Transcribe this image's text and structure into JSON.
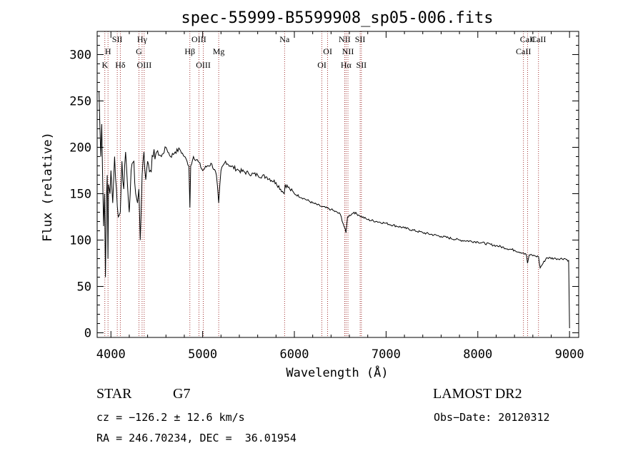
{
  "chart_data": {
    "type": "line",
    "title": "spec-55999-B5599908_sp05-006.fits",
    "xlabel": "Wavelength (Å)",
    "ylabel": "Flux (relative)",
    "xlim": [
      3850,
      9100
    ],
    "ylim": [
      -5,
      325
    ],
    "x_ticks": [
      4000,
      5000,
      6000,
      7000,
      8000,
      9000
    ],
    "y_ticks": [
      0,
      50,
      100,
      150,
      200,
      250,
      300
    ],
    "grid": false,
    "series": [
      {
        "x": [
          3870,
          3880,
          3890,
          3900,
          3910,
          3920,
          3930,
          3940,
          3950,
          3960,
          3968,
          3975,
          3990,
          4000,
          4020,
          4040,
          4060,
          4080,
          4102,
          4120,
          4140,
          4160,
          4180,
          4200,
          4220,
          4250,
          4270,
          4290,
          4305,
          4320,
          4340,
          4360,
          4380,
          4400,
          4430,
          4460,
          4500,
          4550,
          4600,
          4650,
          4700,
          4750,
          4800,
          4830,
          4850,
          4861,
          4870,
          4900,
          4950,
          5000,
          5050,
          5100,
          5150,
          5175,
          5200,
          5250,
          5300,
          5400,
          5500,
          5600,
          5700,
          5800,
          5890,
          5900,
          5950,
          6000,
          6100,
          6200,
          6300,
          6400,
          6500,
          6563,
          6580,
          6650,
          6700,
          6800,
          6900,
          7000,
          7200,
          7400,
          7600,
          7800,
          8000,
          8200,
          8400,
          8498,
          8530,
          8542,
          8560,
          8620,
          8662,
          8680,
          8750,
          8850,
          8950,
          8990,
          9000
        ],
        "y": [
          260,
          220,
          190,
          225,
          165,
          115,
          150,
          60,
          140,
          170,
          80,
          160,
          150,
          175,
          140,
          190,
          155,
          125,
          130,
          185,
          155,
          195,
          160,
          130,
          175,
          185,
          150,
          140,
          155,
          100,
          170,
          195,
          165,
          185,
          175,
          190,
          195,
          190,
          200,
          190,
          195,
          198,
          190,
          185,
          180,
          135,
          180,
          190,
          185,
          175,
          180,
          182,
          170,
          140,
          175,
          185,
          180,
          175,
          172,
          170,
          168,
          162,
          150,
          160,
          155,
          150,
          145,
          140,
          136,
          133,
          128,
          108,
          125,
          130,
          127,
          122,
          120,
          118,
          113,
          108,
          104,
          100,
          98,
          94,
          89,
          86,
          84,
          75,
          84,
          83,
          82,
          70,
          81,
          80,
          80,
          78,
          5
        ]
      }
    ],
    "lines": [
      {
        "label": "K",
        "x": 3934,
        "row": 3
      },
      {
        "label": "H",
        "x": 3968,
        "row": 2
      },
      {
        "label": "SII",
        "x": 4069,
        "row": 1
      },
      {
        "label": "Hδ",
        "x": 4102,
        "row": 3
      },
      {
        "label": "Hγ",
        "x": 4340,
        "row": 1
      },
      {
        "label": "G",
        "x": 4305,
        "row": 2
      },
      {
        "label": "OIII",
        "x": 4363,
        "row": 3
      },
      {
        "label": "Hβ",
        "x": 4861,
        "row": 2
      },
      {
        "label": "OIII",
        "x": 4959,
        "row": 1
      },
      {
        "label": "OIII",
        "x": 5007,
        "row": 3
      },
      {
        "label": "Mg",
        "x": 5175,
        "row": 2
      },
      {
        "label": "Na",
        "x": 5893,
        "row": 1
      },
      {
        "label": "OI",
        "x": 6300,
        "row": 3
      },
      {
        "label": "OI",
        "x": 6363,
        "row": 2
      },
      {
        "label": "NII",
        "x": 6548,
        "row": 1
      },
      {
        "label": "NII",
        "x": 6584,
        "row": 2
      },
      {
        "label": "Hα",
        "x": 6563,
        "row": 3
      },
      {
        "label": "SII",
        "x": 6717,
        "row": 1
      },
      {
        "label": "SII",
        "x": 6731,
        "row": 3
      },
      {
        "label": "CaII",
        "x": 8498,
        "row": 2
      },
      {
        "label": "CaII",
        "x": 8542,
        "row": 1
      },
      {
        "label": "CaII",
        "x": 8662,
        "row": 1
      }
    ]
  },
  "info": {
    "object_class": "STAR",
    "subclass": "G7",
    "survey": "LAMOST DR2",
    "cz": "cz = −126.2 ± 12.6 km/s",
    "obs_date": "Obs−Date: 20120312",
    "coords": "RA = 246.70234, DEC =  36.01954"
  },
  "colors": {
    "spectrum": "#000000",
    "line_marker": "#8b0000",
    "axis": "#000000"
  }
}
